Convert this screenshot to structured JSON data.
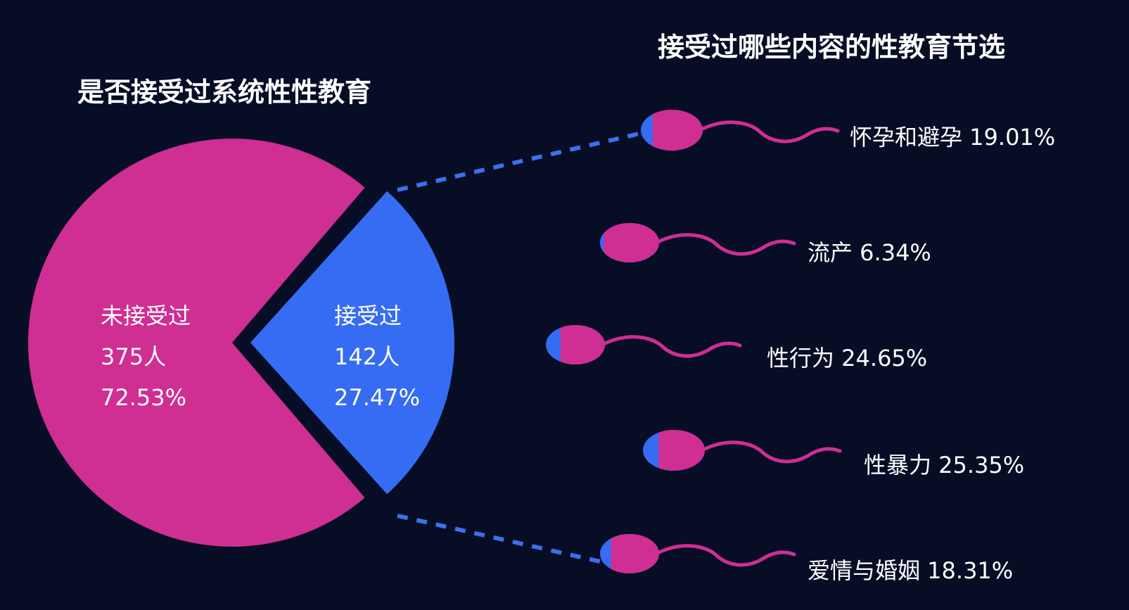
{
  "left_title": "是否接受过系统性性教育",
  "right_title": "接受过哪些内容的性教育节选",
  "colors": {
    "background": "#070d25",
    "pink": "#cf2e93",
    "blue": "#356cf3",
    "connector": "#3c6ff0",
    "text": "#ffffff"
  },
  "chart_data": [
    {
      "type": "pie",
      "title": "是否接受过系统性性教育",
      "slices": [
        {
          "label": "未接受过",
          "count_label": "375人",
          "count": 375,
          "percent_label": "72.53%",
          "percent": 72.53,
          "color": "#cf2e93"
        },
        {
          "label": "接受过",
          "count_label": "142人",
          "count": 142,
          "percent_label": "27.47%",
          "percent": 27.47,
          "color": "#356cf3"
        }
      ]
    },
    {
      "type": "bar",
      "title": "接受过哪些内容的性教育节选",
      "categories": [
        "怀孕和避孕",
        "流产",
        "性行为",
        "性暴力",
        "爱情与婚姻"
      ],
      "values": [
        19.01,
        6.34,
        24.65,
        25.35,
        18.31
      ],
      "value_labels": [
        "19.01%",
        "6.34%",
        "24.65%",
        "25.35%",
        "18.31%"
      ],
      "items": [
        {
          "text": "怀孕和避孕 19.01%"
        },
        {
          "text": "流产 6.34%"
        },
        {
          "text": "性行为 24.65%"
        },
        {
          "text": "性暴力 25.35%"
        },
        {
          "text": "爱情与婚姻 18.31%"
        }
      ]
    }
  ]
}
